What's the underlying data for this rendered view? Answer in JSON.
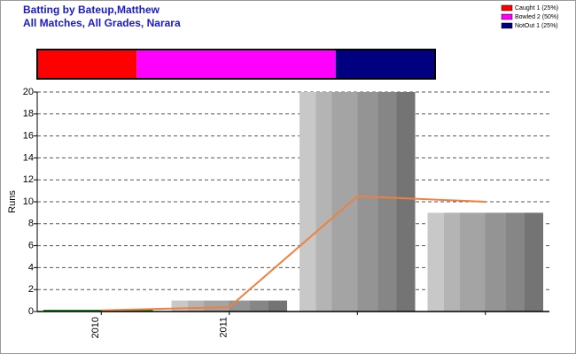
{
  "chart_data": [
    {
      "type": "bar",
      "title": "Batting by Bateup,Matthew",
      "subtitle": "All Matches, All Grades, Narara",
      "y_label": "Runs",
      "categories": [
        "2010",
        "2011",
        null,
        null
      ],
      "values": [
        0,
        1,
        20,
        9
      ],
      "line": {
        "color": "#f08040",
        "values": [
          0.1,
          0.4,
          10.5,
          10
        ]
      },
      "ylim": [
        0,
        20
      ],
      "yticks": [
        0,
        2,
        4,
        6,
        8,
        10,
        12,
        14,
        16,
        18,
        20
      ],
      "grid": true
    },
    {
      "type": "stacked-strip",
      "series": [
        {
          "name": "Caught 1 (25%)",
          "color": "#ff0000",
          "values": [
            1
          ]
        },
        {
          "name": "Bowled 2 (50%)",
          "color": "#ff00ff",
          "values": [
            2
          ]
        },
        {
          "name": "NotOut 1 (25%)",
          "color": "#000080",
          "values": [
            1
          ]
        }
      ]
    }
  ]
}
